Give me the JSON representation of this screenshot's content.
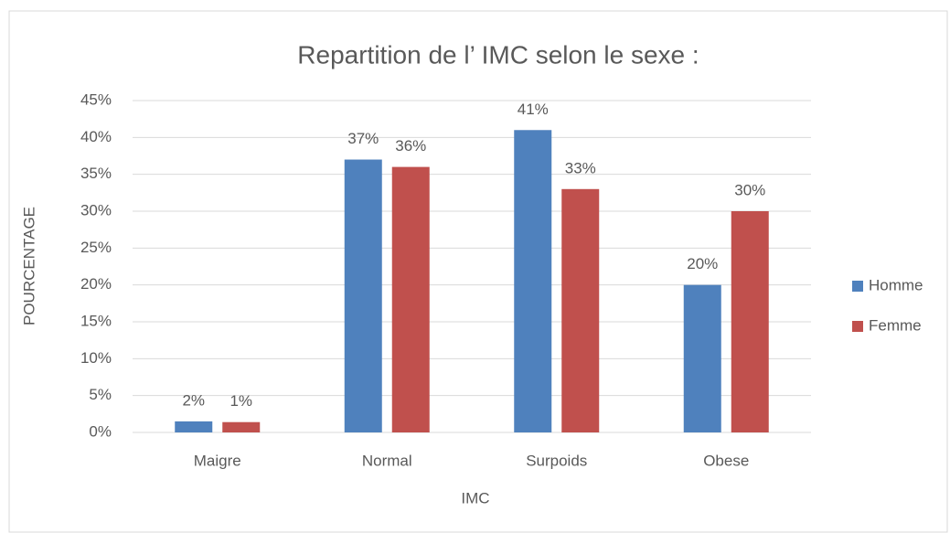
{
  "chart_data": {
    "type": "bar",
    "title": "Repartition de l’ IMC selon le sexe :",
    "x_label": "IMC",
    "y_label": "POURCENTAGE",
    "categories": [
      "Maigre",
      "Normal",
      "Surpoids",
      "Obese"
    ],
    "series": [
      {
        "name": "Homme",
        "color": "#4f81bd",
        "values": [
          1.5,
          37,
          41,
          20
        ],
        "value_labels": [
          "2%",
          "37%",
          "41%",
          "20%"
        ]
      },
      {
        "name": "Femme",
        "color": "#c0504d",
        "values": [
          1.4,
          36,
          33,
          30
        ],
        "value_labels": [
          "1%",
          "36%",
          "33%",
          "30%"
        ]
      }
    ],
    "ylim": [
      0,
      45
    ],
    "yticks": [
      {
        "value": 0,
        "label": "0%"
      },
      {
        "value": 5,
        "label": "5%"
      },
      {
        "value": 10,
        "label": "10%"
      },
      {
        "value": 15,
        "label": "15%"
      },
      {
        "value": 20,
        "label": "20%"
      },
      {
        "value": 25,
        "label": "25%"
      },
      {
        "value": 30,
        "label": "30%"
      },
      {
        "value": 35,
        "label": "35%"
      },
      {
        "value": 40,
        "label": "40%"
      },
      {
        "value": 45,
        "label": "45%"
      }
    ],
    "grid": true,
    "legend": "right"
  }
}
